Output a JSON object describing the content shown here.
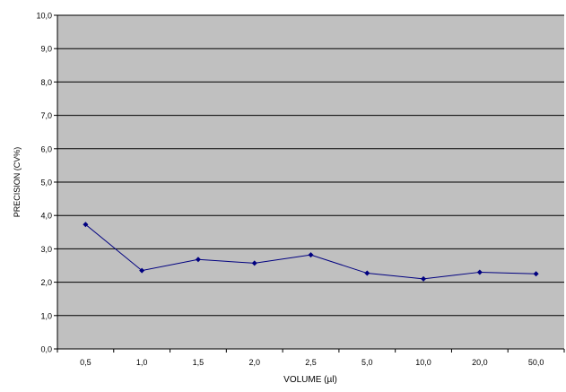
{
  "chart_data": {
    "type": "line",
    "categories": [
      "0,5",
      "1,0",
      "1,5",
      "2,0",
      "2,5",
      "5,0",
      "10,0",
      "20,0",
      "50,0"
    ],
    "series": [
      {
        "values": [
          3.73,
          2.35,
          2.68,
          2.57,
          2.82,
          2.27,
          2.1,
          2.3,
          2.25
        ]
      }
    ],
    "xlabel": "VOLUME (µl)",
    "ylabel": "PRECISION (CV%)",
    "ylim": [
      0,
      10
    ],
    "y_ticks": [
      "0,0",
      "1,0",
      "2,0",
      "3,0",
      "4,0",
      "5,0",
      "6,0",
      "7,0",
      "8,0",
      "9,0",
      "10,0"
    ],
    "grid": true,
    "legend": "none"
  },
  "colors": {
    "plot_background": "#c0c0c0",
    "gridline": "#000000",
    "series_line": "#000080",
    "marker": "#000080"
  }
}
